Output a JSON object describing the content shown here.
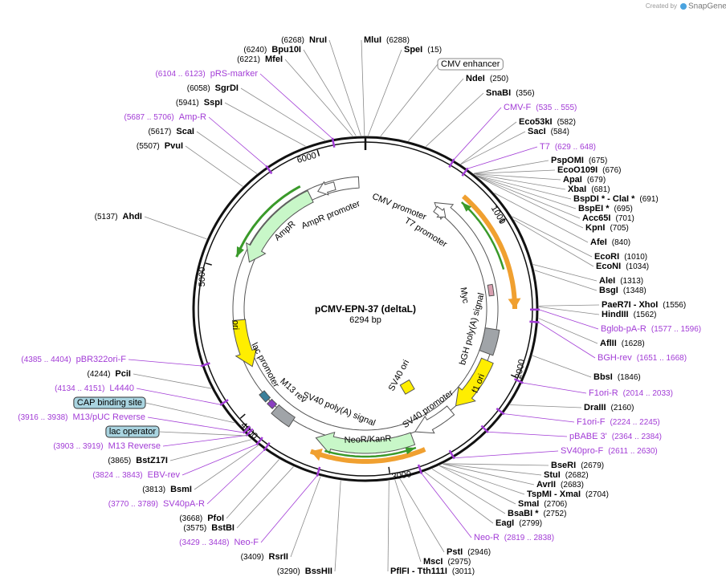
{
  "title": "pCMV-EPN-37 (deltaL)",
  "size": "6294 bp",
  "branding": {
    "prefix": "Created by",
    "name": "SnapGene"
  },
  "labels_left": [
    {
      "name": "NruI",
      "pos": "(6268)",
      "color": "#000000"
    },
    {
      "name": "Bpu10I",
      "pos": "(6240)",
      "color": "#000000"
    },
    {
      "name": "MfeI",
      "pos": "(6221)",
      "color": "#000000"
    },
    {
      "name": "pRS-marker",
      "pos": "(6104 .. 6123)",
      "color": "#a23cd6"
    },
    {
      "name": "SgrDI",
      "pos": "(6058)",
      "color": "#000000"
    },
    {
      "name": "SspI",
      "pos": "(5941)",
      "color": "#000000"
    },
    {
      "name": "Amp-R",
      "pos": "(5687 .. 5706)",
      "color": "#a23cd6"
    },
    {
      "name": "ScaI",
      "pos": "(5617)",
      "color": "#000000"
    },
    {
      "name": "PvuI",
      "pos": "(5507)",
      "color": "#000000"
    },
    {
      "name": "AhdI",
      "pos": "(5137)",
      "color": "#000000"
    },
    {
      "name": "pBR322ori-F",
      "pos": "(4385 .. 4404)",
      "color": "#a23cd6"
    },
    {
      "name": "PciI",
      "pos": "(4244)",
      "color": "#000000"
    },
    {
      "name": "L4440",
      "pos": "(4134 .. 4151)",
      "color": "#a23cd6"
    },
    {
      "name": "M13/pUC Reverse",
      "pos": "(3916 .. 3938)",
      "color": "#a23cd6"
    },
    {
      "name": "M13 Reverse",
      "pos": "(3903 .. 3919)",
      "color": "#a23cd6"
    },
    {
      "name": "BstZ17I",
      "pos": "(3865)",
      "color": "#000000"
    },
    {
      "name": "EBV-rev",
      "pos": "(3824 .. 3843)",
      "color": "#a23cd6"
    },
    {
      "name": "BsmI",
      "pos": "(3813)",
      "color": "#000000"
    },
    {
      "name": "SV40pA-R",
      "pos": "(3770 .. 3789)",
      "color": "#a23cd6"
    },
    {
      "name": "PfoI",
      "pos": "(3668)",
      "color": "#000000"
    },
    {
      "name": "BstBI",
      "pos": "(3575)",
      "color": "#000000"
    },
    {
      "name": "Neo-F",
      "pos": "(3429 .. 3448)",
      "color": "#a23cd6"
    },
    {
      "name": "RsrII",
      "pos": "(3409)",
      "color": "#000000"
    },
    {
      "name": "BssHII",
      "pos": "(3290)",
      "color": "#000000"
    }
  ],
  "labels_right": [
    {
      "name": "MluI",
      "pos": "(6288)",
      "color": "#000000"
    },
    {
      "name": "SpeI",
      "pos": "(15)",
      "color": "#000000"
    },
    {
      "name": "NdeI",
      "pos": "(250)",
      "color": "#000000"
    },
    {
      "name": "SnaBI",
      "pos": "(356)",
      "color": "#000000"
    },
    {
      "name": "CMV-F",
      "pos": "(535 .. 555)",
      "color": "#a23cd6"
    },
    {
      "name": "Eco53kI",
      "pos": "(582)",
      "color": "#000000"
    },
    {
      "name": "SacI",
      "pos": "(584)",
      "color": "#000000"
    },
    {
      "name": "T7",
      "pos": "(629 .. 648)",
      "color": "#a23cd6"
    },
    {
      "name": "PspOMI",
      "pos": "(675)",
      "color": "#000000"
    },
    {
      "name": "EcoO109I",
      "pos": "(676)",
      "color": "#000000"
    },
    {
      "name": "ApaI",
      "pos": "(679)",
      "color": "#000000"
    },
    {
      "name": "XbaI",
      "pos": "(681)",
      "color": "#000000"
    },
    {
      "name": "BspDI * - ClaI *",
      "pos": "(691)",
      "color": "#000000"
    },
    {
      "name": "BspEI *",
      "pos": "(695)",
      "color": "#000000"
    },
    {
      "name": "Acc65I",
      "pos": "(701)",
      "color": "#000000"
    },
    {
      "name": "KpnI",
      "pos": "(705)",
      "color": "#000000"
    },
    {
      "name": "AfeI",
      "pos": "(840)",
      "color": "#000000"
    },
    {
      "name": "EcoRI",
      "pos": "(1010)",
      "color": "#000000"
    },
    {
      "name": "EcoNI",
      "pos": "(1034)",
      "color": "#000000"
    },
    {
      "name": "AleI",
      "pos": "(1313)",
      "color": "#000000"
    },
    {
      "name": "BsgI",
      "pos": "(1348)",
      "color": "#000000"
    },
    {
      "name": "PaeR7I - XhoI",
      "pos": "(1556)",
      "color": "#000000"
    },
    {
      "name": "HindIII",
      "pos": "(1562)",
      "color": "#000000"
    },
    {
      "name": "Bglob-pA-R",
      "pos": "(1577 .. 1596)",
      "color": "#a23cd6"
    },
    {
      "name": "AflII",
      "pos": "(1628)",
      "color": "#000000"
    },
    {
      "name": "BGH-rev",
      "pos": "(1651 .. 1668)",
      "color": "#a23cd6"
    },
    {
      "name": "BbsI",
      "pos": "(1846)",
      "color": "#000000"
    },
    {
      "name": "F1ori-R",
      "pos": "(2014 .. 2033)",
      "color": "#a23cd6"
    },
    {
      "name": "DraIII",
      "pos": "(2160)",
      "color": "#000000"
    },
    {
      "name": "F1ori-F",
      "pos": "(2224 .. 2245)",
      "color": "#a23cd6"
    },
    {
      "name": "pBABE 3'",
      "pos": "(2364 .. 2384)",
      "color": "#a23cd6"
    },
    {
      "name": "SV40pro-F",
      "pos": "(2611 .. 2630)",
      "color": "#a23cd6"
    },
    {
      "name": "BseRI",
      "pos": "(2679)",
      "color": "#000000"
    },
    {
      "name": "StuI",
      "pos": "(2682)",
      "color": "#000000"
    },
    {
      "name": "AvrII",
      "pos": "(2683)",
      "color": "#000000"
    },
    {
      "name": "TspMI - XmaI",
      "pos": "(2704)",
      "color": "#000000"
    },
    {
      "name": "SmaI",
      "pos": "(2706)",
      "color": "#000000"
    },
    {
      "name": "BsaBI *",
      "pos": "(2752)",
      "color": "#000000"
    },
    {
      "name": "EagI",
      "pos": "(2799)",
      "color": "#000000"
    },
    {
      "name": "Neo-R",
      "pos": "(2819 .. 2838)",
      "color": "#a23cd6"
    },
    {
      "name": "PstI",
      "pos": "(2946)",
      "color": "#000000"
    },
    {
      "name": "MscI",
      "pos": "(2975)",
      "color": "#000000"
    },
    {
      "name": "PflFI - Tth111I",
      "pos": "(3011)",
      "color": "#000000"
    }
  ],
  "boxes": [
    "CMV enhancer",
    "CAP binding site",
    "lac operator"
  ],
  "features": [
    "CMV promoter",
    "T7 promoter",
    "AmpR promoter",
    "AmpR",
    "ori",
    "lac promoter",
    "M13 rev",
    "SV40 poly(A) signal",
    "NeoR/KanR",
    "SV40 promoter",
    "SV40 ori",
    "f1 ori",
    "bGH poly(A) signal",
    "Myc"
  ],
  "ticks": [
    "1000",
    "2000",
    "3000",
    "4000",
    "5000",
    "6000"
  ]
}
